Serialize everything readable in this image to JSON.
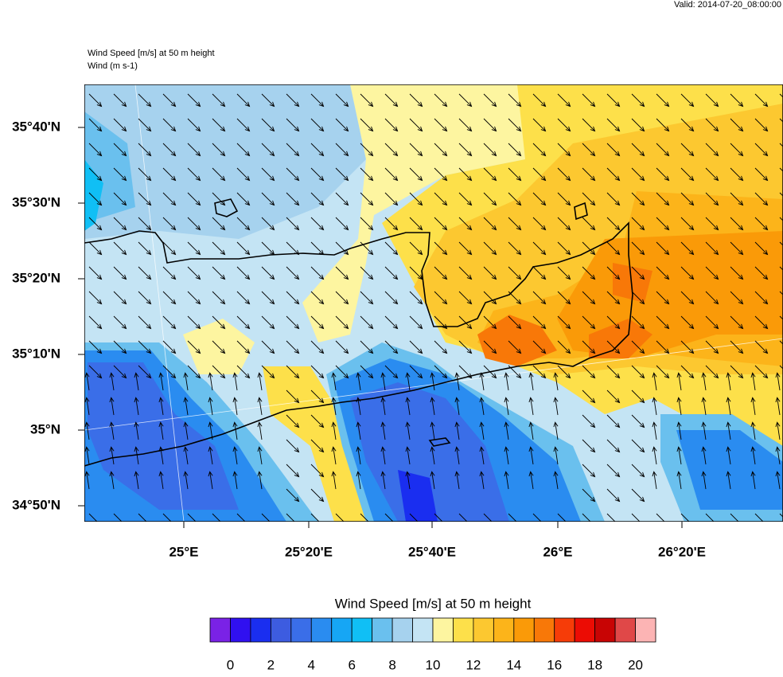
{
  "header": {
    "valid": "Valid: 2014-07-20_08:00:00",
    "title": "Wind Speed [m/s] at 50 m height",
    "subtitle": "Wind   (m s-1)"
  },
  "map": {
    "lat_labels": [
      "35°40'N",
      "35°30'N",
      "35°20'N",
      "35°10'N",
      "35°N",
      "34°50'N"
    ],
    "lon_labels": [
      "25°E",
      "25°20'E",
      "25°40'E",
      "26°E",
      "26°20'E"
    ]
  },
  "colorbar": {
    "title": "Wind Speed [m/s] at 50 m height",
    "colors": [
      "#7a22e6",
      "#3010f0",
      "#1a2ef0",
      "#3d5ce0",
      "#3a6ee8",
      "#2a8cf0",
      "#16a6f5",
      "#10bff5",
      "#6ac0ee",
      "#a6d2ee",
      "#c4e4f4",
      "#fdf5a0",
      "#fde04a",
      "#fcc830",
      "#fcb41a",
      "#fa9a08",
      "#f87808",
      "#f63c08",
      "#ec0c04",
      "#c80404",
      "#e04848",
      "#fcb4b4"
    ],
    "labels": [
      0,
      2,
      4,
      6,
      8,
      10,
      12,
      14,
      16,
      18,
      20
    ]
  }
}
